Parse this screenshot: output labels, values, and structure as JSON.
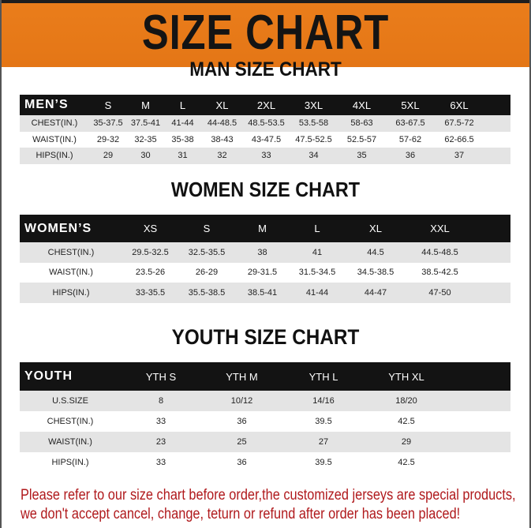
{
  "title": "SIZE CHART",
  "colors": {
    "banner": "#e97b1a",
    "header_row": "#131313",
    "notice": "#b0191c",
    "stripe": "#e4e4e4"
  },
  "men": {
    "title": "MAN SIZE CHART",
    "header": [
      "MEN’S",
      "S",
      "M",
      "L",
      "XL",
      "2XL",
      "3XL",
      "4XL",
      "5XL",
      "6XL"
    ],
    "rows": [
      [
        "CHEST(IN.)",
        "35-37.5",
        "37.5-41",
        "41-44",
        "44-48.5",
        "48.5-53.5",
        "53.5-58",
        "58-63",
        "63-67.5",
        "67.5-72"
      ],
      [
        "WAIST(IN.)",
        "29-32",
        "32-35",
        "35-38",
        "38-43",
        "43-47.5",
        "47.5-52.5",
        "52.5-57",
        "57-62",
        "62-66.5"
      ],
      [
        "HIPS(IN.)",
        "29",
        "30",
        "31",
        "32",
        "33",
        "34",
        "35",
        "36",
        "37"
      ]
    ]
  },
  "women": {
    "title": "WOMEN SIZE CHART",
    "header": [
      "WOMEN’S",
      "XS",
      "S",
      "M",
      "L",
      "XL",
      "XXL"
    ],
    "rows": [
      [
        "CHEST(IN.)",
        "29.5-32.5",
        "32.5-35.5",
        "38",
        "41",
        "44.5",
        "44.5-48.5"
      ],
      [
        "WAIST(IN.)",
        "23.5-26",
        "26-29",
        "29-31.5",
        "31.5-34.5",
        "34.5-38.5",
        "38.5-42.5"
      ],
      [
        "HIPS(IN.)",
        "33-35.5",
        "35.5-38.5",
        "38.5-41",
        "41-44",
        "44-47",
        "47-50"
      ]
    ]
  },
  "youth": {
    "title": "YOUTH SIZE CHART",
    "header": [
      "YOUTH",
      "YTH S",
      "YTH M",
      "YTH L",
      "YTH XL"
    ],
    "rows": [
      [
        "U.S.SIZE",
        "8",
        "10/12",
        "14/16",
        "18/20"
      ],
      [
        "CHEST(IN.)",
        "33",
        "36",
        "39.5",
        "42.5"
      ],
      [
        "WAIST(IN.)",
        "23",
        "25",
        "27",
        "29"
      ],
      [
        "HIPS(IN.)",
        "33",
        "36",
        "39.5",
        "42.5"
      ]
    ]
  },
  "notice": {
    "line1": "Please refer to our size chart before order,the customized jerseys are special products,",
    "line2": "we don't accept cancel, change, teturn or refund after order has been placed!"
  }
}
